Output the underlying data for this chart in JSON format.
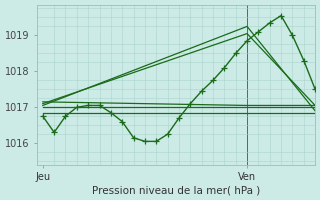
{
  "title": "Pression niveau de la mer( hPa )",
  "xlabel_ticks": [
    "Jeu",
    "Ven"
  ],
  "xlabel_tick_positions": [
    0,
    18
  ],
  "ylabel_ticks": [
    1016,
    1017,
    1018,
    1019
  ],
  "ylim": [
    1015.4,
    1019.85
  ],
  "xlim": [
    -0.5,
    24
  ],
  "bg_color": "#cceae6",
  "grid_color": "#aad4cc",
  "line_color": "#1a6b1a",
  "vline_x": 18,
  "series": [
    {
      "x": [
        0,
        1,
        2,
        3,
        4,
        5,
        6,
        7,
        8,
        9,
        10,
        11,
        12,
        13,
        14,
        15,
        16,
        17,
        18,
        19,
        20,
        21,
        22,
        23,
        24
      ],
      "y": [
        1016.75,
        1016.3,
        1016.75,
        1017.0,
        1017.05,
        1017.05,
        1016.85,
        1016.6,
        1016.15,
        1016.05,
        1016.05,
        1016.25,
        1016.7,
        1017.1,
        1017.45,
        1017.75,
        1018.1,
        1018.5,
        1018.85,
        1019.1,
        1019.35,
        1019.55,
        1019.0,
        1018.3,
        1017.5
      ],
      "marker": true,
      "lw": 1.0
    },
    {
      "x": [
        0,
        18,
        24
      ],
      "y": [
        1017.05,
        1019.25,
        1016.9
      ],
      "marker": false,
      "lw": 0.9
    },
    {
      "x": [
        0,
        18,
        24
      ],
      "y": [
        1017.1,
        1019.05,
        1017.05
      ],
      "marker": false,
      "lw": 0.9
    },
    {
      "x": [
        0,
        18,
        24
      ],
      "y": [
        1017.15,
        1017.05,
        1017.05
      ],
      "marker": false,
      "lw": 0.9
    },
    {
      "x": [
        0,
        18,
        24
      ],
      "y": [
        1017.0,
        1017.0,
        1017.0
      ],
      "marker": false,
      "lw": 0.9
    },
    {
      "x": [
        0,
        18,
        24
      ],
      "y": [
        1016.85,
        1016.85,
        1016.85
      ],
      "marker": false,
      "lw": 0.9
    }
  ]
}
